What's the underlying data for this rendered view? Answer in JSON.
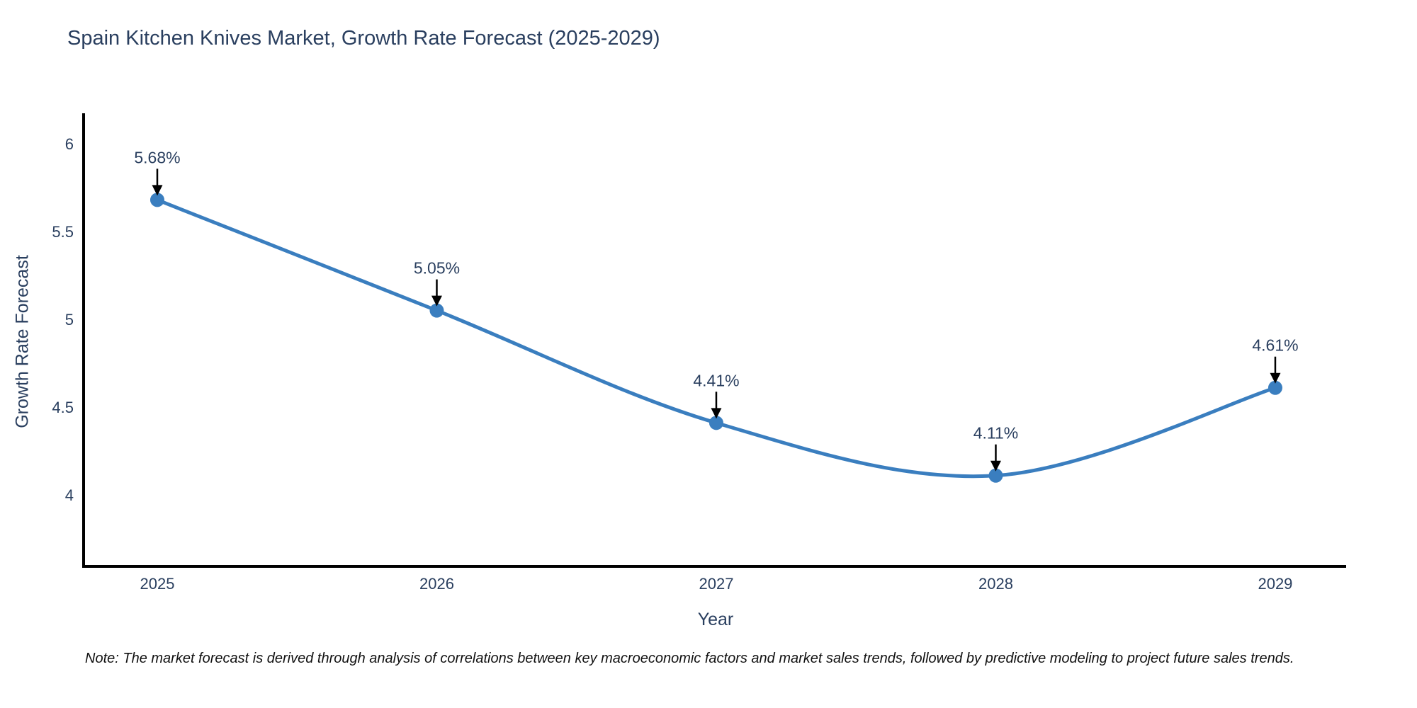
{
  "chart_data": {
    "type": "line",
    "title": "Spain Kitchen Knives Market, Growth Rate Forecast (2025-2029)",
    "xlabel": "Year",
    "ylabel": "Growth Rate Forecast",
    "x": [
      2025,
      2026,
      2027,
      2028,
      2029
    ],
    "values": [
      5.68,
      5.05,
      4.41,
      4.11,
      4.61
    ],
    "point_labels": [
      "5.68%",
      "5.05%",
      "4.41%",
      "4.11%",
      "4.61%"
    ],
    "x_ticks": [
      "2025",
      "2026",
      "2027",
      "2028",
      "2029"
    ],
    "y_ticks": [
      "4",
      "4.5",
      "5",
      "5.5",
      "6"
    ],
    "y_tick_values": [
      4,
      4.5,
      5,
      5.5,
      6
    ],
    "xlim": [
      2024.7364,
      2029.2536
    ],
    "ylim": [
      3.5927,
      6.1734
    ],
    "grid": false,
    "legend": "none",
    "line_shape": "spline",
    "line_color": "#3a7ebf",
    "marker_color": "#3a7ebf",
    "axis_color": "#000000",
    "text_color": "#2a3f5f",
    "annotation_color": "#2a3f5f",
    "arrow_color": "#000000"
  },
  "note": "Note: The market forecast is derived through analysis of correlations between key macroeconomic factors and market sales trends, followed by predictive modeling to project future sales trends."
}
